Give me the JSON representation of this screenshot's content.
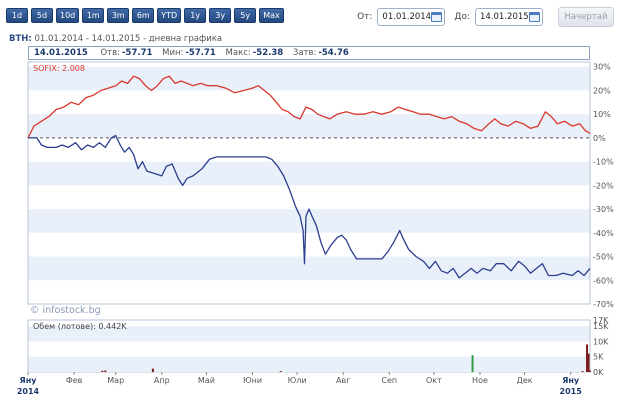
{
  "toolbar": {
    "periods": [
      "1d",
      "5d",
      "10d",
      "1m",
      "3m",
      "6m",
      "YTD",
      "1y",
      "3y",
      "5y",
      "Max"
    ],
    "from_label": "От:",
    "from_value": "01.01.2014",
    "to_label": "До:",
    "to_value": "14.01.2015",
    "draw_button": "Начертай"
  },
  "header": {
    "ticker": "BTH:",
    "range_text": "01.01.2014 - 14.01.2015 - дневна графика"
  },
  "stats": {
    "date": "14.01.2015",
    "open_label": "Отв:",
    "open": "-57.71",
    "min_label": "Мин:",
    "min": "-57.71",
    "max_label": "Макс:",
    "max": "-52.38",
    "close_label": "Затв:",
    "close": "-54.76"
  },
  "legend": {
    "sofix": "SOFIX: 2.008"
  },
  "watermark": "© infostock.bg",
  "volume_label": "Обем (лотове): 0.442K",
  "colors": {
    "main_series": "#2c3e8f",
    "sofix_series": "#d9382c",
    "volume_bar": "#7a1a1a",
    "volume_bar_highlight": "#2f9a3f",
    "band": "#eaf0fa",
    "axis_text": "#555555"
  },
  "chart_data": [
    {
      "type": "line",
      "y_unit": "%",
      "ylim": [
        -70,
        32
      ],
      "y_ticks": [
        30,
        20,
        10,
        0,
        -10,
        -20,
        -30,
        -40,
        -50,
        -60,
        -70
      ],
      "y_tick_labels": [
        "30%",
        "20%",
        "10%",
        "0%",
        "-10%",
        "-20%",
        "-30%",
        "-40%",
        "-50%",
        "-60%",
        "-70%"
      ],
      "x_range": [
        "2014-01-01",
        "2015-01-14"
      ],
      "x_tick_labels": [
        {
          "date": "2014-01-01",
          "label": "Яну",
          "sub": "2014"
        },
        {
          "date": "2014-02-01",
          "label": "Фев"
        },
        {
          "date": "2014-03-01",
          "label": "Мар"
        },
        {
          "date": "2014-04-01",
          "label": "Апр"
        },
        {
          "date": "2014-05-01",
          "label": "Май"
        },
        {
          "date": "2014-06-01",
          "label": "Юни"
        },
        {
          "date": "2014-07-01",
          "label": "Юли"
        },
        {
          "date": "2014-08-01",
          "label": "Авг"
        },
        {
          "date": "2014-09-01",
          "label": "Сеп"
        },
        {
          "date": "2014-10-01",
          "label": "Окт"
        },
        {
          "date": "2014-11-01",
          "label": "Ное"
        },
        {
          "date": "2014-12-01",
          "label": "Дек"
        },
        {
          "date": "2015-01-01",
          "label": "Яну",
          "sub": "2015"
        }
      ],
      "zero_line": true,
      "series": [
        {
          "name": "BTH",
          "points": [
            [
              "2014-01-01",
              0
            ],
            [
              "2014-01-07",
              0
            ],
            [
              "2014-01-10",
              -3
            ],
            [
              "2014-01-14",
              -4
            ],
            [
              "2014-01-20",
              -4
            ],
            [
              "2014-01-24",
              -3
            ],
            [
              "2014-01-28",
              -4
            ],
            [
              "2014-02-02",
              -2
            ],
            [
              "2014-02-06",
              -5
            ],
            [
              "2014-02-10",
              -3
            ],
            [
              "2014-02-14",
              -4
            ],
            [
              "2014-02-18",
              -2
            ],
            [
              "2014-02-22",
              -4
            ],
            [
              "2014-02-26",
              0
            ],
            [
              "2014-03-01",
              1
            ],
            [
              "2014-03-04",
              -3
            ],
            [
              "2014-03-07",
              -6
            ],
            [
              "2014-03-10",
              -4
            ],
            [
              "2014-03-13",
              -7
            ],
            [
              "2014-03-16",
              -13
            ],
            [
              "2014-03-19",
              -10
            ],
            [
              "2014-03-22",
              -14
            ],
            [
              "2014-03-27",
              -15
            ],
            [
              "2014-04-01",
              -16
            ],
            [
              "2014-04-04",
              -12
            ],
            [
              "2014-04-08",
              -11
            ],
            [
              "2014-04-12",
              -17
            ],
            [
              "2014-04-15",
              -20
            ],
            [
              "2014-04-18",
              -17
            ],
            [
              "2014-04-22",
              -16
            ],
            [
              "2014-04-28",
              -13
            ],
            [
              "2014-05-03",
              -9
            ],
            [
              "2014-05-08",
              -8
            ],
            [
              "2014-05-15",
              -8
            ],
            [
              "2014-05-22",
              -8
            ],
            [
              "2014-05-30",
              -8
            ],
            [
              "2014-06-05",
              -8
            ],
            [
              "2014-06-10",
              -8
            ],
            [
              "2014-06-14",
              -9
            ],
            [
              "2014-06-18",
              -12
            ],
            [
              "2014-06-22",
              -16
            ],
            [
              "2014-06-26",
              -22
            ],
            [
              "2014-06-30",
              -29
            ],
            [
              "2014-07-03",
              -33
            ],
            [
              "2014-07-05",
              -39
            ],
            [
              "2014-07-06",
              -53
            ],
            [
              "2014-07-07",
              -33
            ],
            [
              "2014-07-09",
              -30
            ],
            [
              "2014-07-11",
              -33
            ],
            [
              "2014-07-14",
              -37
            ],
            [
              "2014-07-17",
              -44
            ],
            [
              "2014-07-20",
              -49
            ],
            [
              "2014-07-24",
              -45
            ],
            [
              "2014-07-28",
              -42
            ],
            [
              "2014-07-31",
              -41
            ],
            [
              "2014-08-03",
              -43
            ],
            [
              "2014-08-06",
              -47
            ],
            [
              "2014-08-10",
              -51
            ],
            [
              "2014-08-18",
              -51
            ],
            [
              "2014-08-27",
              -51
            ],
            [
              "2014-08-31",
              -48
            ],
            [
              "2014-09-04",
              -44
            ],
            [
              "2014-09-08",
              -39
            ],
            [
              "2014-09-10",
              -42
            ],
            [
              "2014-09-14",
              -47
            ],
            [
              "2014-09-19",
              -50
            ],
            [
              "2014-09-24",
              -52
            ],
            [
              "2014-09-28",
              -55
            ],
            [
              "2014-10-02",
              -52
            ],
            [
              "2014-10-06",
              -56
            ],
            [
              "2014-10-10",
              -57
            ],
            [
              "2014-10-14",
              -55
            ],
            [
              "2014-10-18",
              -59
            ],
            [
              "2014-10-22",
              -57
            ],
            [
              "2014-10-26",
              -55
            ],
            [
              "2014-10-30",
              -57
            ],
            [
              "2014-11-03",
              -55
            ],
            [
              "2014-11-08",
              -56
            ],
            [
              "2014-11-12",
              -53
            ],
            [
              "2014-11-17",
              -53
            ],
            [
              "2014-11-22",
              -56
            ],
            [
              "2014-11-27",
              -52
            ],
            [
              "2014-12-01",
              -54
            ],
            [
              "2014-12-05",
              -57
            ],
            [
              "2014-12-09",
              -55
            ],
            [
              "2014-12-13",
              -53
            ],
            [
              "2014-12-17",
              -58
            ],
            [
              "2014-12-22",
              -58
            ],
            [
              "2014-12-27",
              -57
            ],
            [
              "2015-01-02",
              -58
            ],
            [
              "2015-01-06",
              -56
            ],
            [
              "2015-01-10",
              -58
            ],
            [
              "2015-01-14",
              -55
            ]
          ]
        },
        {
          "name": "SOFIX",
          "points": [
            [
              "2014-01-01",
              0
            ],
            [
              "2014-01-05",
              5
            ],
            [
              "2014-01-10",
              7
            ],
            [
              "2014-01-15",
              9
            ],
            [
              "2014-01-20",
              12
            ],
            [
              "2014-01-25",
              13
            ],
            [
              "2014-01-30",
              15
            ],
            [
              "2014-02-04",
              14
            ],
            [
              "2014-02-09",
              17
            ],
            [
              "2014-02-14",
              18
            ],
            [
              "2014-02-19",
              20
            ],
            [
              "2014-02-24",
              21
            ],
            [
              "2014-03-01",
              22
            ],
            [
              "2014-03-05",
              24
            ],
            [
              "2014-03-09",
              23
            ],
            [
              "2014-03-13",
              26
            ],
            [
              "2014-03-17",
              25
            ],
            [
              "2014-03-21",
              22
            ],
            [
              "2014-03-25",
              20
            ],
            [
              "2014-03-29",
              22
            ],
            [
              "2014-04-02",
              25
            ],
            [
              "2014-04-06",
              26
            ],
            [
              "2014-04-10",
              23
            ],
            [
              "2014-04-14",
              24
            ],
            [
              "2014-04-18",
              23
            ],
            [
              "2014-04-22",
              22
            ],
            [
              "2014-04-27",
              23
            ],
            [
              "2014-05-02",
              22
            ],
            [
              "2014-05-08",
              22
            ],
            [
              "2014-05-14",
              21
            ],
            [
              "2014-05-20",
              19
            ],
            [
              "2014-05-26",
              20
            ],
            [
              "2014-06-01",
              21
            ],
            [
              "2014-06-05",
              22
            ],
            [
              "2014-06-09",
              20
            ],
            [
              "2014-06-13",
              18
            ],
            [
              "2014-06-17",
              15
            ],
            [
              "2014-06-21",
              12
            ],
            [
              "2014-06-25",
              11
            ],
            [
              "2014-06-29",
              9
            ],
            [
              "2014-07-03",
              8
            ],
            [
              "2014-07-07",
              13
            ],
            [
              "2014-07-11",
              12
            ],
            [
              "2014-07-15",
              10
            ],
            [
              "2014-07-19",
              9
            ],
            [
              "2014-07-23",
              8
            ],
            [
              "2014-07-28",
              10
            ],
            [
              "2014-08-03",
              11
            ],
            [
              "2014-08-09",
              10
            ],
            [
              "2014-08-15",
              10
            ],
            [
              "2014-08-21",
              11
            ],
            [
              "2014-08-27",
              10
            ],
            [
              "2014-09-02",
              11
            ],
            [
              "2014-09-07",
              13
            ],
            [
              "2014-09-12",
              12
            ],
            [
              "2014-09-17",
              11
            ],
            [
              "2014-09-22",
              10
            ],
            [
              "2014-09-28",
              10
            ],
            [
              "2014-10-03",
              9
            ],
            [
              "2014-10-08",
              8
            ],
            [
              "2014-10-13",
              9
            ],
            [
              "2014-10-18",
              7
            ],
            [
              "2014-10-23",
              6
            ],
            [
              "2014-10-28",
              4
            ],
            [
              "2014-11-02",
              3
            ],
            [
              "2014-11-07",
              6
            ],
            [
              "2014-11-11",
              8
            ],
            [
              "2014-11-15",
              6
            ],
            [
              "2014-11-20",
              5
            ],
            [
              "2014-11-25",
              7
            ],
            [
              "2014-11-30",
              6
            ],
            [
              "2014-12-05",
              4
            ],
            [
              "2014-12-10",
              5
            ],
            [
              "2014-12-15",
              11
            ],
            [
              "2014-12-19",
              9
            ],
            [
              "2014-12-23",
              6
            ],
            [
              "2014-12-28",
              7
            ],
            [
              "2015-01-02",
              5
            ],
            [
              "2015-01-07",
              6
            ],
            [
              "2015-01-11",
              3
            ],
            [
              "2015-01-14",
              2
            ]
          ]
        }
      ]
    },
    {
      "type": "bar",
      "title": "Обем (лотове): 0.442K",
      "ylim": [
        0,
        17000
      ],
      "y_tick_labels": [
        "0K",
        "5K",
        "10K",
        "15K",
        "17K"
      ],
      "y_ticks": [
        0,
        5000,
        10000,
        15000,
        17000
      ],
      "bars": [
        {
          "date": "2014-02-20",
          "value": 400,
          "color": "#7a1a1a"
        },
        {
          "date": "2014-02-22",
          "value": 500,
          "color": "#7a1a1a"
        },
        {
          "date": "2014-03-26",
          "value": 1100,
          "color": "#7a1a1a"
        },
        {
          "date": "2014-06-20",
          "value": 300,
          "color": "#7a1a1a"
        },
        {
          "date": "2014-10-27",
          "value": 5500,
          "color": "#2f9a3f"
        },
        {
          "date": "2015-01-09",
          "value": 300,
          "color": "#7a1a1a"
        },
        {
          "date": "2015-01-12",
          "value": 9000,
          "color": "#7a1a1a"
        },
        {
          "date": "2015-01-13",
          "value": 6000,
          "color": "#7a1a1a"
        },
        {
          "date": "2015-01-14",
          "value": 442,
          "color": "#7a1a1a"
        }
      ]
    }
  ]
}
